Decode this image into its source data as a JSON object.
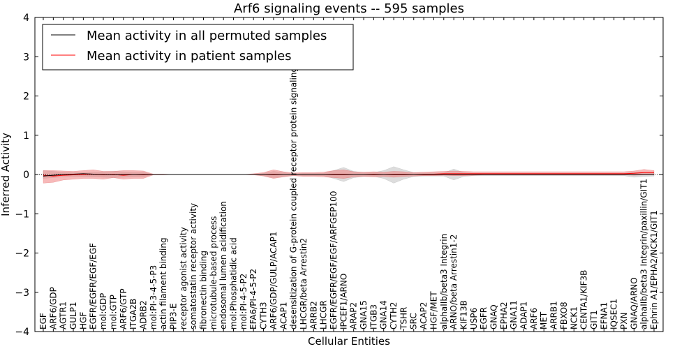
{
  "chart_data": {
    "type": "line",
    "title": "Arf6 signaling events -- 595 samples",
    "xlabel": "Cellular Entities",
    "ylabel": "Inferred Activity",
    "ylim": [
      -4,
      4
    ],
    "yticks": [
      4,
      3,
      2,
      1,
      0,
      -1,
      -2,
      -3,
      -4
    ],
    "legend_position": "top-left",
    "colors": {
      "permuted": "#000000",
      "patient": "#ff0000",
      "patient_band": "#f08080",
      "permuted_band": "#bbbbbb"
    },
    "categories": [
      "EGF",
      "ARF6/GDP",
      "AGTR1",
      "GULP1",
      "HGF",
      "EGFR/EGFR/EGF/EGF",
      "mol:GDP",
      "mol:GTP",
      "ARF6/GTP",
      "ITGA2B",
      "ADRB2",
      "mol:PI-3-4-5-P3",
      "actin filament binding",
      "PIP3-E",
      "receptor agonist activity",
      "somatostatin receptor activity",
      "fibronectin binding",
      "microtubule-based process",
      "endosomal lumen acidification",
      "mol:Phosphatidic acid",
      "mol:PI-4-5-P2",
      "EFA6/PI-4-5-P2",
      "CYTH3",
      "ARF6/GDP/GULP/ACAP1",
      "ACAP1",
      "desensitization of G-protein coupled receptor protein signaling pathway",
      "LHCGR/beta Arrestin2",
      "ARRB2",
      "LHCGR",
      "EGFR/EGFR/EGF/EGF/ARFGEP100",
      "IPCEF1/ARNO",
      "ARAP2",
      "GNA15",
      "ITGB3",
      "GNA14",
      "CYTH2",
      "TSHR",
      "SRC",
      "ACAP2",
      "HGF/MET",
      "alphaIIb/beta3 Integrin",
      "ARNO/beta Arrestin1-2",
      "KIF13B",
      "USP6",
      "EGFR",
      "GNAQ",
      "EPHA2",
      "GNA11",
      "ADAP1",
      "ARF6",
      "MET",
      "ARRB1",
      "FBXO8",
      "NCK1",
      "CENTA1/KIF3B",
      "GIT1",
      "EFNA1",
      "IQSEC1",
      "PXN",
      "GNAQ/ARNO",
      "alphaIIb/beta3 Integrin/paxillin/GIT1",
      "Ephrin A1/EPHA2/NCK1/GIT1"
    ],
    "series": [
      {
        "name": "Mean activity in all permuted samples",
        "values": [
          -0.04,
          -0.02,
          0.0,
          0.01,
          0.02,
          0.01,
          0.0,
          -0.01,
          0.0,
          0.0,
          0.0,
          0.0,
          0.0,
          0.0,
          0.0,
          0.0,
          0.0,
          0.0,
          0.0,
          0.0,
          0.0,
          0.0,
          0.0,
          0.0,
          0.0,
          0.0,
          0.0,
          0.0,
          0.0,
          0.0,
          0.0,
          0.0,
          0.0,
          0.0,
          0.0,
          0.0,
          0.0,
          0.0,
          0.0,
          0.0,
          0.0,
          0.0,
          0.0,
          0.0,
          0.0,
          0.0,
          0.0,
          0.0,
          0.0,
          0.0,
          0.0,
          0.0,
          0.0,
          0.0,
          0.0,
          0.0,
          0.0,
          0.0,
          0.0,
          0.0,
          0.0,
          0.0
        ],
        "lower": [
          -0.1,
          -0.08,
          -0.06,
          -0.05,
          -0.05,
          -0.06,
          -0.07,
          -0.08,
          -0.07,
          -0.06,
          -0.06,
          0.0,
          0.0,
          0.0,
          0.0,
          0.0,
          0.0,
          0.0,
          0.0,
          0.0,
          0.0,
          0.0,
          -0.03,
          -0.08,
          -0.05,
          -0.02,
          -0.03,
          -0.03,
          -0.03,
          -0.1,
          -0.18,
          -0.08,
          -0.05,
          -0.05,
          -0.1,
          -0.22,
          -0.12,
          -0.05,
          -0.04,
          -0.04,
          -0.04,
          -0.14,
          -0.05,
          -0.03,
          -0.03,
          -0.03,
          -0.03,
          -0.03,
          -0.03,
          -0.03,
          -0.03,
          -0.03,
          -0.03,
          -0.03,
          -0.03,
          -0.03,
          -0.03,
          -0.03,
          -0.03,
          -0.07,
          -0.05,
          -0.04
        ],
        "upper": [
          0.1,
          0.08,
          0.06,
          0.05,
          0.05,
          0.06,
          0.07,
          0.08,
          0.07,
          0.06,
          0.06,
          0.0,
          0.0,
          0.0,
          0.0,
          0.0,
          0.0,
          0.0,
          0.0,
          0.0,
          0.0,
          0.0,
          0.03,
          0.08,
          0.05,
          0.02,
          0.03,
          0.03,
          0.03,
          0.1,
          0.18,
          0.08,
          0.05,
          0.05,
          0.1,
          0.2,
          0.12,
          0.05,
          0.04,
          0.04,
          0.04,
          0.14,
          0.05,
          0.03,
          0.03,
          0.03,
          0.03,
          0.03,
          0.03,
          0.03,
          0.03,
          0.03,
          0.03,
          0.03,
          0.03,
          0.03,
          0.03,
          0.03,
          0.03,
          0.07,
          0.05,
          0.04
        ]
      },
      {
        "name": "Mean activity in patient samples",
        "values": [
          -0.02,
          -0.04,
          -0.02,
          -0.01,
          0.0,
          0.01,
          -0.01,
          0.0,
          -0.02,
          0.0,
          -0.01,
          0.0,
          0.0,
          0.0,
          0.0,
          0.0,
          0.0,
          0.0,
          0.0,
          0.0,
          0.0,
          0.0,
          0.0,
          0.01,
          0.0,
          0.0,
          0.0,
          0.0,
          0.0,
          0.01,
          0.01,
          0.0,
          0.0,
          0.01,
          0.0,
          0.01,
          0.01,
          0.0,
          0.01,
          0.01,
          0.02,
          0.02,
          0.02,
          0.02,
          0.02,
          0.02,
          0.02,
          0.02,
          0.02,
          0.02,
          0.02,
          0.02,
          0.02,
          0.02,
          0.02,
          0.02,
          0.02,
          0.02,
          0.02,
          0.03,
          0.05,
          0.05
        ],
        "lower": [
          -0.22,
          -0.2,
          -0.14,
          -0.12,
          -0.1,
          -0.1,
          -0.12,
          -0.08,
          -0.12,
          -0.1,
          -0.1,
          -0.01,
          -0.01,
          0.0,
          0.0,
          0.0,
          0.0,
          0.0,
          0.0,
          0.0,
          0.0,
          -0.01,
          -0.04,
          -0.1,
          -0.06,
          -0.03,
          -0.05,
          -0.05,
          -0.06,
          -0.08,
          -0.1,
          -0.06,
          -0.05,
          -0.06,
          -0.05,
          -0.07,
          -0.05,
          -0.04,
          -0.03,
          -0.03,
          -0.02,
          -0.03,
          -0.03,
          -0.02,
          -0.01,
          -0.01,
          -0.01,
          -0.01,
          -0.01,
          -0.01,
          -0.01,
          -0.01,
          -0.01,
          -0.01,
          -0.01,
          -0.01,
          -0.01,
          -0.01,
          -0.01,
          -0.02,
          -0.01,
          -0.01
        ],
        "upper": [
          0.1,
          0.1,
          0.09,
          0.08,
          0.1,
          0.12,
          0.08,
          0.08,
          0.1,
          0.1,
          0.09,
          0.01,
          0.01,
          0.0,
          0.0,
          0.0,
          0.0,
          0.0,
          0.0,
          0.0,
          0.0,
          0.02,
          0.05,
          0.12,
          0.07,
          0.04,
          0.05,
          0.05,
          0.06,
          0.1,
          0.12,
          0.07,
          0.06,
          0.07,
          0.06,
          0.08,
          0.07,
          0.05,
          0.06,
          0.07,
          0.08,
          0.09,
          0.08,
          0.07,
          0.07,
          0.07,
          0.07,
          0.07,
          0.07,
          0.07,
          0.07,
          0.07,
          0.07,
          0.07,
          0.07,
          0.07,
          0.07,
          0.07,
          0.07,
          0.09,
          0.13,
          0.1
        ]
      }
    ]
  }
}
